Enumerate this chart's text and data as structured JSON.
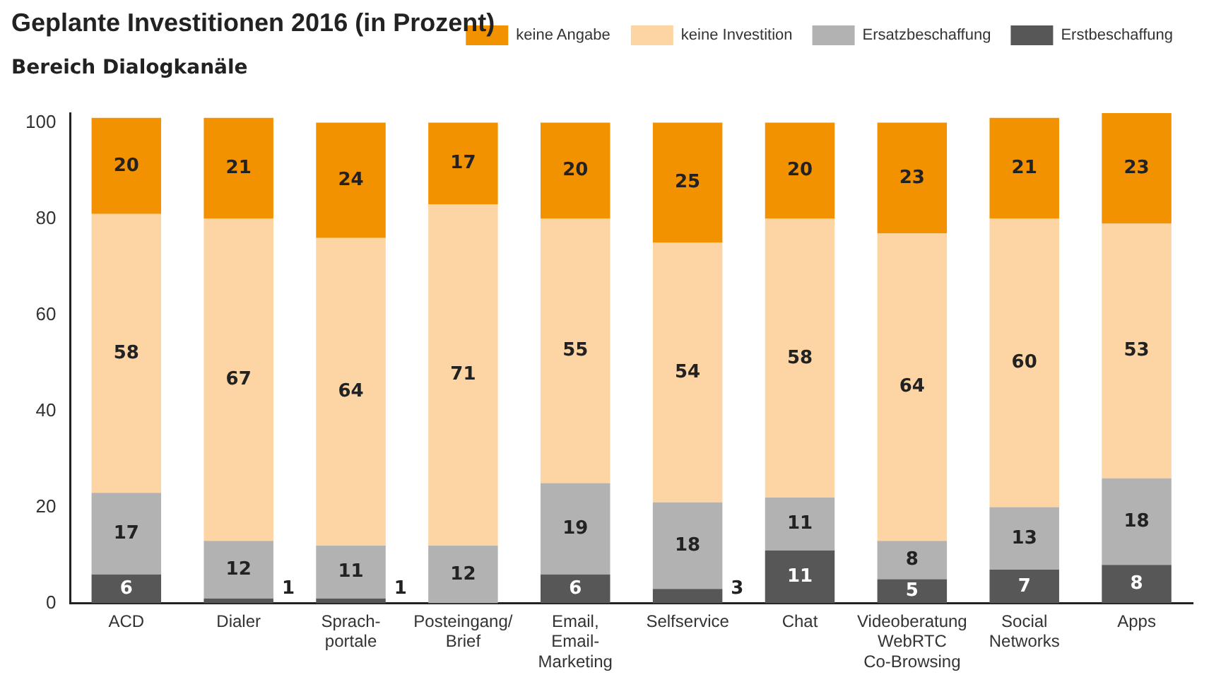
{
  "chart_data": {
    "type": "bar",
    "title": "Geplante Investitionen 2016 (in Prozent)",
    "subtitle": "Bereich Dialogkanäle",
    "categories": [
      "ACD",
      "Dialer",
      "Sprach-\nportale",
      "Posteingang/\nBrief",
      "Email,\nEmail-\nMarketing",
      "Selfservice",
      "Chat",
      "Videoberatung\nWebRTC\nCo-Browsing",
      "Social\nNetworks",
      "Apps"
    ],
    "stacked": true,
    "ylim": [
      0,
      102
    ],
    "yticks": [
      0,
      20,
      40,
      60,
      80,
      100
    ],
    "grid": false,
    "legend": "top right",
    "series": [
      {
        "name": "Erstbeschaffung",
        "color": "#575757",
        "values": [
          6,
          1,
          1,
          0,
          6,
          3,
          11,
          5,
          7,
          8
        ],
        "value_labels": [
          "6",
          "1",
          "1",
          null,
          "6",
          "3",
          "11",
          "5",
          "7",
          "8"
        ]
      },
      {
        "name": "Ersatzbeschaffung",
        "color": "#b2b2b2",
        "values": [
          17,
          12,
          11,
          12,
          19,
          18,
          11,
          8,
          13,
          18
        ],
        "value_labels": [
          "17",
          "12",
          "11",
          "12",
          "19",
          "18",
          "11",
          "8",
          "13",
          "18"
        ]
      },
      {
        "name": "keine Investition",
        "color": "#fdd5a4",
        "values": [
          58,
          67,
          64,
          71,
          55,
          54,
          58,
          64,
          60,
          53
        ],
        "value_labels": [
          "58",
          "67",
          "64",
          "71",
          "55",
          "54",
          "58",
          "64",
          "60",
          "53"
        ]
      },
      {
        "name": "keine Angabe",
        "color": "#f39200",
        "values": [
          20,
          21,
          24,
          17,
          20,
          25,
          20,
          23,
          21,
          23
        ],
        "value_labels": [
          "20",
          "21",
          "24",
          "17",
          "20",
          "25",
          "20",
          "23",
          "21",
          "23"
        ]
      }
    ]
  }
}
